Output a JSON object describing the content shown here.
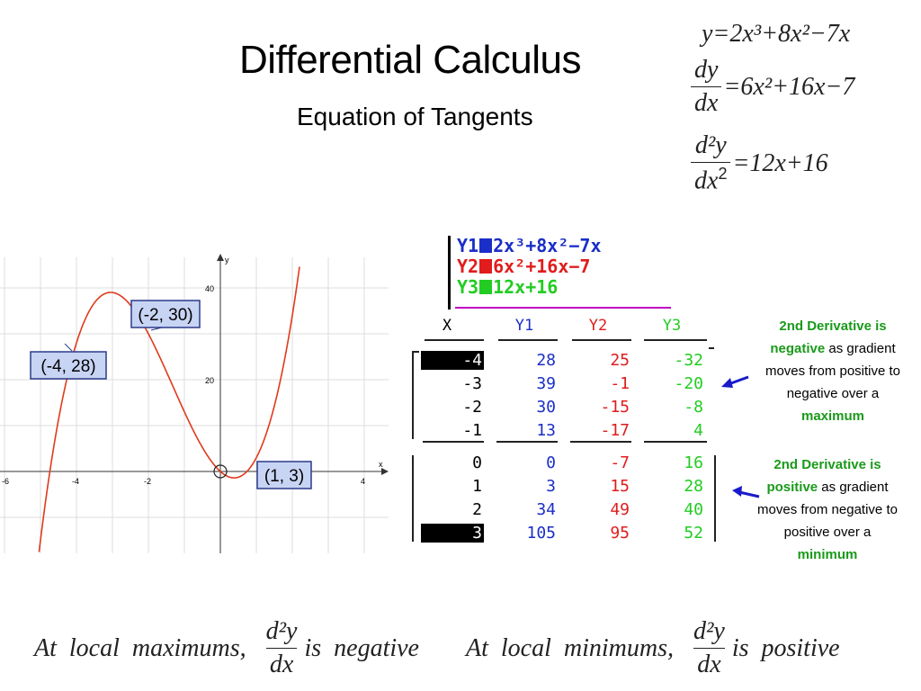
{
  "header": {
    "title": "Differential Calculus",
    "subtitle": "Equation of Tangents"
  },
  "equations": {
    "y": "y=2x³+8x²−7x",
    "dy_num": "dy",
    "dy_den": "dx",
    "dy_rhs": "=6x²+16x−7",
    "d2y_num": "d²y",
    "d2y_den": "dx",
    "d2y_den_power": "2",
    "d2y_rhs": "=12x+16"
  },
  "graph": {
    "axis_x_label": "x",
    "axis_y_label": "y",
    "x_ticks": [
      "-6",
      "-4",
      "-2",
      "4"
    ],
    "y_ticks": [
      "20",
      "40"
    ],
    "curve_color": "#e03a1c",
    "point_labels": [
      {
        "text": "(-2, 30)"
      },
      {
        "text": "(-4, 28)"
      },
      {
        "text": "(1, 3)"
      }
    ]
  },
  "calculator": {
    "y1_name": "Y1",
    "y1_expr": "2x³+8x²−7x",
    "y1_color": "#1a2ec8",
    "y2_name": "Y2",
    "y2_expr": "6x²+16x−7",
    "y2_color": "#e01c1c",
    "y3_name": "Y3",
    "y3_expr": "12x+16",
    "y3_color": "#22cc22"
  },
  "table": {
    "headers": [
      "X",
      "Y1",
      "Y2",
      "Y3"
    ],
    "rows": [
      [
        "-4",
        "28",
        "25",
        "-32"
      ],
      [
        "-3",
        "39",
        "-1",
        "-20"
      ],
      [
        "-2",
        "30",
        "-15",
        "-8"
      ],
      [
        "-1",
        "13",
        "-17",
        "4"
      ],
      [
        "0",
        "0",
        "-7",
        "16"
      ],
      [
        "1",
        "3",
        "15",
        "28"
      ],
      [
        "2",
        "34",
        "49",
        "40"
      ],
      [
        "3",
        "105",
        "95",
        "52"
      ]
    ]
  },
  "notes": {
    "max_l1": "2nd Derivative is",
    "max_l2_bold": "negative",
    "max_l2_rest": " as gradient",
    "max_l3": "moves from positive to",
    "max_l4": "negative over a",
    "max_l5": "maximum",
    "min_l1": "2nd Derivative is",
    "min_l2_bold": "positive",
    "min_l2_rest": " as gradient",
    "min_l3": "moves from negative to",
    "min_l4": "positive over a",
    "min_l5": "minimum"
  },
  "footer": {
    "max_prefix": "At  local  maximums,",
    "num": "d²y",
    "den": "dx",
    "max_suffix": "is  negative",
    "min_prefix": "At  local  minimums,",
    "min_suffix": "is  positive"
  },
  "colors": {
    "label_box_bg": "#c8d4f4",
    "label_box_border": "#2a3a8a",
    "arrow": "#1a1acc",
    "note_bold": "#1a9a1a"
  }
}
